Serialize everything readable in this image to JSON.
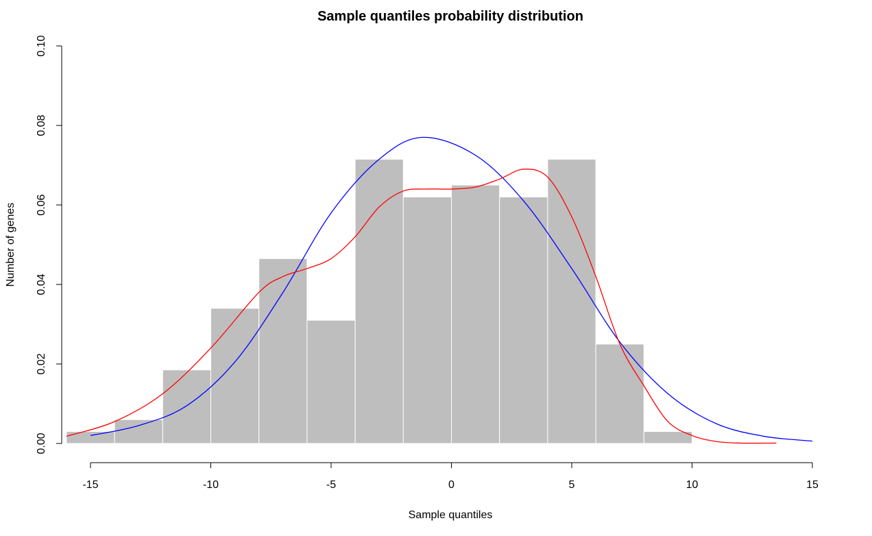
{
  "chart_data": {
    "type": "histogram",
    "title": "Sample quantiles probability distribution",
    "xlabel": "Sample quantiles",
    "ylabel": "Number of genes",
    "xlim": [
      -16,
      15
    ],
    "ylim": [
      0,
      0.1
    ],
    "x_ticks": [
      -15,
      -10,
      -5,
      0,
      5,
      10,
      15
    ],
    "y_ticks": [
      0.0,
      0.02,
      0.04,
      0.06,
      0.08,
      0.1
    ],
    "x_tick_labels": [
      "-15",
      "-10",
      "-5",
      "0",
      "5",
      "10",
      "15"
    ],
    "y_tick_labels": [
      "0.00",
      "0.02",
      "0.04",
      "0.06",
      "0.08",
      "0.10"
    ],
    "bar_color": "#bebebe",
    "bins": [
      {
        "x0": -16,
        "x1": -14,
        "density": 0.003
      },
      {
        "x0": -14,
        "x1": -12,
        "density": 0.006
      },
      {
        "x0": -12,
        "x1": -10,
        "density": 0.0185
      },
      {
        "x0": -10,
        "x1": -8,
        "density": 0.034
      },
      {
        "x0": -8,
        "x1": -6,
        "density": 0.0465
      },
      {
        "x0": -6,
        "x1": -4,
        "density": 0.031
      },
      {
        "x0": -4,
        "x1": -2,
        "density": 0.0715
      },
      {
        "x0": -2,
        "x1": 0,
        "density": 0.062
      },
      {
        "x0": 0,
        "x1": 2,
        "density": 0.065
      },
      {
        "x0": 2,
        "x1": 4,
        "density": 0.062
      },
      {
        "x0": 4,
        "x1": 6,
        "density": 0.0715
      },
      {
        "x0": 6,
        "x1": 8,
        "density": 0.025
      },
      {
        "x0": 8,
        "x1": 10,
        "density": 0.003
      }
    ],
    "series": [
      {
        "color": "#0000ff",
        "x": [
          -15,
          -13,
          -11,
          -9,
          -7,
          -5,
          -3,
          -1.2,
          1,
          3,
          5,
          7,
          9,
          11,
          13,
          15
        ],
        "y": [
          0.002,
          0.0045,
          0.0095,
          0.0205,
          0.038,
          0.058,
          0.0715,
          0.077,
          0.0725,
          0.061,
          0.044,
          0.0255,
          0.0125,
          0.005,
          0.0018,
          0.0006
        ]
      },
      {
        "color": "#ff0000",
        "x": [
          -16,
          -14,
          -12,
          -10,
          -8,
          -7,
          -6,
          -5,
          -4,
          -3,
          -2,
          -1,
          0,
          1,
          2,
          3,
          4,
          5,
          6,
          7,
          8,
          9,
          10,
          11,
          12,
          13.5
        ],
        "y": [
          0.0018,
          0.0055,
          0.0125,
          0.024,
          0.038,
          0.042,
          0.044,
          0.0465,
          0.052,
          0.0595,
          0.0635,
          0.064,
          0.064,
          0.0645,
          0.0665,
          0.069,
          0.067,
          0.057,
          0.042,
          0.025,
          0.0145,
          0.0055,
          0.002,
          0.0005,
          0.0001,
          0.0001
        ]
      }
    ]
  }
}
